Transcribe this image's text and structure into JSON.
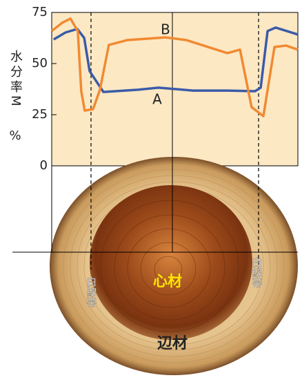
{
  "chart_data": {
    "type": "line",
    "ylabel": "水分率M",
    "ylabel_unit": "%",
    "xlim": [
      0,
      100
    ],
    "ylim": [
      0,
      75
    ],
    "yticks": [
      0,
      25,
      50,
      75
    ],
    "series": [
      {
        "name": "A",
        "color": "#3a5ba8",
        "x": [
          0.8,
          5.6,
          10.4,
          13.2,
          15.4,
          21.0,
          35.0,
          43.4,
          57.4,
          71.4,
          82.6,
          84.9,
          87.7,
          91.0,
          100
        ],
        "values": [
          61.8,
          65.2,
          66.9,
          62.5,
          46.3,
          36.1,
          37.2,
          38.2,
          36.8,
          36.8,
          36.5,
          38.2,
          65.9,
          67.6,
          64.2
        ]
      },
      {
        "name": "B",
        "color": "#f08a32",
        "x": [
          0,
          4.2,
          7.6,
          10.6,
          12.0,
          13.4,
          16.8,
          19.6,
          23.2,
          30.8,
          46.2,
          54.6,
          71.4,
          76.5,
          81.2,
          86.0,
          90.5,
          95.2,
          100
        ],
        "values": [
          65.9,
          69.9,
          72.0,
          65.9,
          36.5,
          27.0,
          27.7,
          37.2,
          59.1,
          61.5,
          62.8,
          61.5,
          55.1,
          56.8,
          28.7,
          24.3,
          58.1,
          58.8,
          56.8
        ]
      }
    ],
    "annotations": [
      "白線帯",
      "白線帯",
      "心材",
      "辺材"
    ]
  }
}
